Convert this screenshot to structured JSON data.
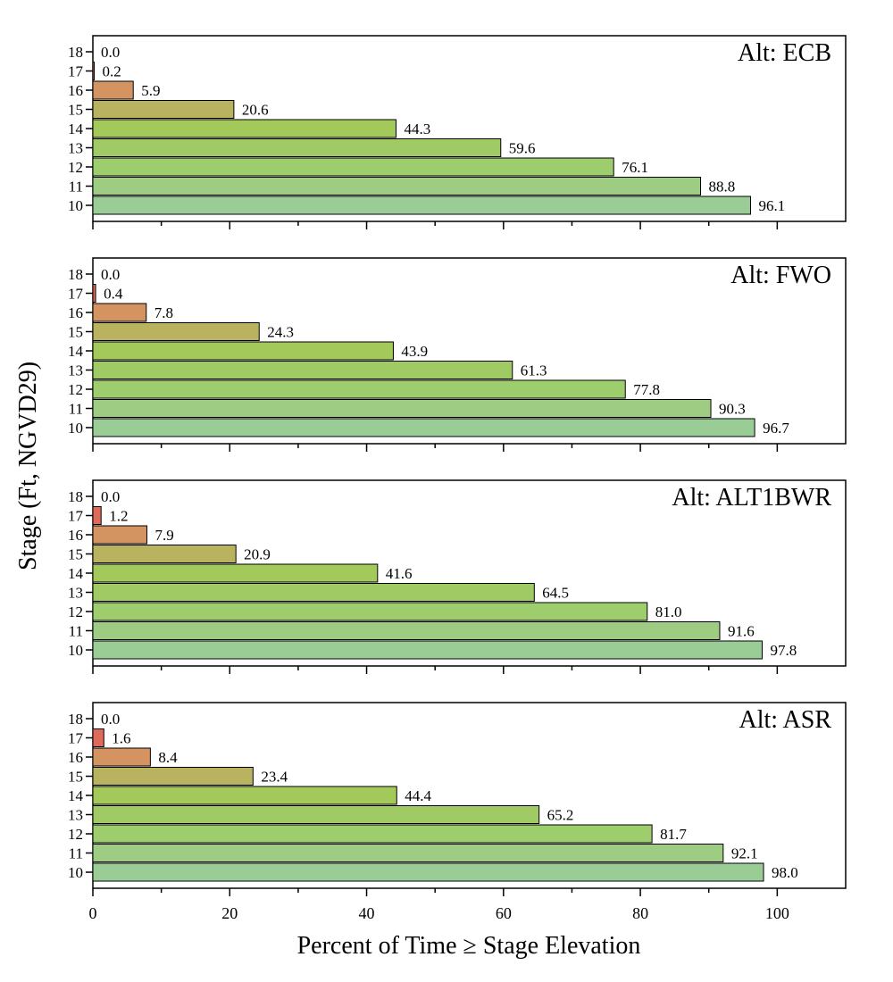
{
  "chart_data": {
    "type": "bar",
    "orientation": "horizontal",
    "ylabel": "Stage (Ft, NGVD29)",
    "xlabel": "Percent of Time ≥ Stage Elevation",
    "xlim": [
      0,
      110
    ],
    "x_ticks": [
      0,
      20,
      40,
      60,
      80,
      100
    ],
    "x_tick_labels": [
      "0",
      "20",
      "40",
      "60",
      "80",
      "100"
    ],
    "categories": [
      "18",
      "17",
      "16",
      "15",
      "14",
      "13",
      "12",
      "11",
      "10"
    ],
    "bar_colors": {
      "18": "#e06a5a",
      "17": "#e06a5a",
      "16": "#d49462",
      "15": "#b9b25e",
      "14": "#a3c95a",
      "13": "#a0ca64",
      "12": "#9ecd6e",
      "11": "#9dcc82",
      "10": "#9acd96"
    },
    "panels": [
      {
        "title": "Alt: ECB",
        "values": [
          0.0,
          0.2,
          5.9,
          20.6,
          44.3,
          59.6,
          76.1,
          88.8,
          96.1
        ],
        "labels": [
          "0.0",
          "0.2",
          "5.9",
          "20.6",
          "44.3",
          "59.6",
          "76.1",
          "88.8",
          "96.1"
        ]
      },
      {
        "title": "Alt: FWO",
        "values": [
          0.0,
          0.4,
          7.8,
          24.3,
          43.9,
          61.3,
          77.8,
          90.3,
          96.7
        ],
        "labels": [
          "0.0",
          "0.4",
          "7.8",
          "24.3",
          "43.9",
          "61.3",
          "77.8",
          "90.3",
          "96.7"
        ]
      },
      {
        "title": "Alt: ALT1BWR",
        "values": [
          0.0,
          1.2,
          7.9,
          20.9,
          41.6,
          64.5,
          81.0,
          91.6,
          97.8
        ],
        "labels": [
          "0.0",
          "1.2",
          "7.9",
          "20.9",
          "41.6",
          "64.5",
          "81.0",
          "91.6",
          "97.8"
        ]
      },
      {
        "title": "Alt: ASR",
        "values": [
          0.0,
          1.6,
          8.4,
          23.4,
          44.4,
          65.2,
          81.7,
          92.1,
          98.0
        ],
        "labels": [
          "0.0",
          "1.6",
          "8.4",
          "23.4",
          "44.4",
          "65.2",
          "81.7",
          "92.1",
          "98.0"
        ]
      }
    ]
  }
}
